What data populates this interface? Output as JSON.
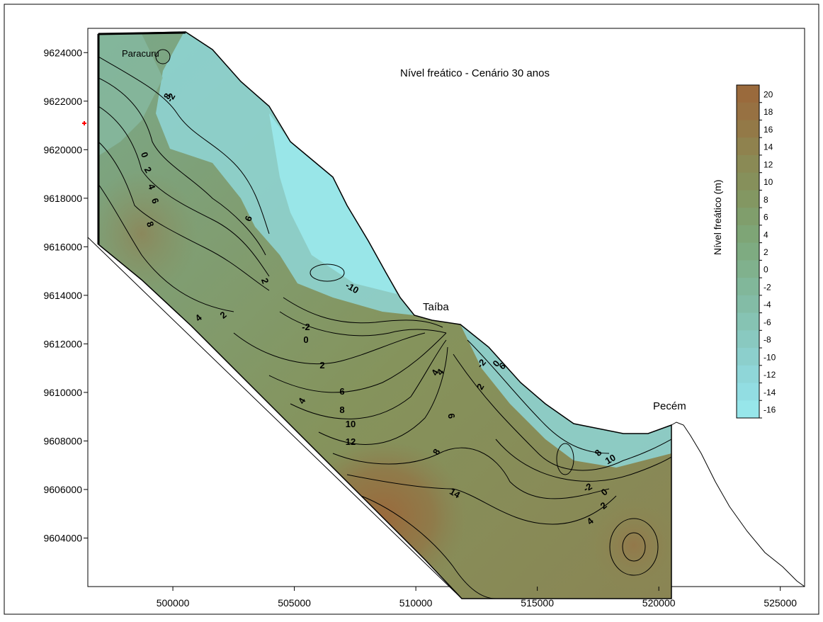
{
  "map": {
    "title": "Nível freático - Cenário 30 anos",
    "place_labels": [
      "Paracuru",
      "Taíba",
      "Pecém"
    ],
    "x_axis": {
      "min": 496500,
      "max": 526000,
      "ticks": [
        500000,
        505000,
        510000,
        515000,
        520000,
        525000
      ],
      "tick_labels": [
        "500000",
        "505000",
        "510000",
        "515000",
        "520000",
        "525000"
      ]
    },
    "y_axis": {
      "min": 9602000,
      "max": 9625000,
      "ticks": [
        9604000,
        9606000,
        9608000,
        9610000,
        9612000,
        9614000,
        9616000,
        9618000,
        9620000,
        9622000,
        9624000
      ],
      "tick_labels": [
        "9604000",
        "9606000",
        "9608000",
        "9610000",
        "9612000",
        "9614000",
        "9616000",
        "9618000",
        "9620000",
        "9622000",
        "9624000"
      ]
    },
    "contour_labels": [
      "-2",
      "-10",
      "-2",
      "0",
      "2",
      "4",
      "6",
      "8",
      "10",
      "12",
      "14",
      "0",
      "2",
      "4",
      "6",
      "8",
      "2",
      "4",
      "2",
      "8",
      "4",
      "6",
      "-2",
      "0",
      "2",
      "4",
      "6",
      "8",
      "10",
      "-2",
      "0",
      "2",
      "4",
      "6",
      "8"
    ]
  },
  "legend": {
    "title": "Nível freático (m)",
    "levels": [
      "20",
      "18",
      "16",
      "14",
      "12",
      "10",
      "8",
      "6",
      "4",
      "2",
      "0",
      "-2",
      "-4",
      "-6",
      "-8",
      "-10",
      "-12",
      "-14",
      "-16"
    ],
    "colors": [
      "#9a6a3c",
      "#977142",
      "#937947",
      "#8f824e",
      "#8a8a55",
      "#86905b",
      "#839762",
      "#809e6c",
      "#7ea576",
      "#7eab81",
      "#80b18d",
      "#81b79a",
      "#83bca6",
      "#86c3b3",
      "#89c9c0",
      "#8ccfcc",
      "#8fd6d8",
      "#92dde2",
      "#97e6ea"
    ]
  },
  "colors": {
    "frame": "#000000",
    "low": "#97e6ea",
    "mid": "#7fae87",
    "high": "#9a6a3c"
  }
}
